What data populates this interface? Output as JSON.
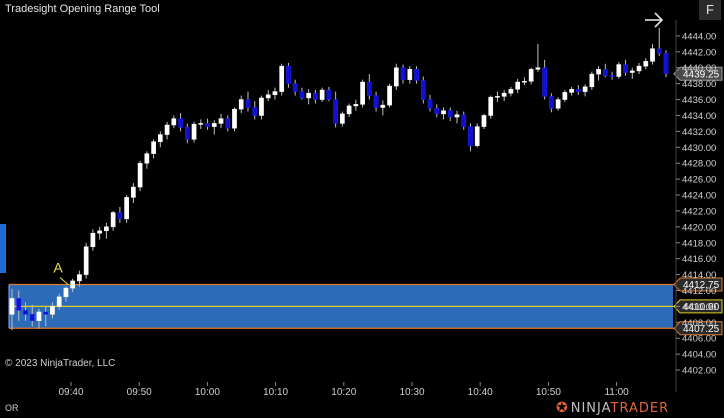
{
  "window": {
    "title": "Tradesight Opening Range Tool",
    "f_button": "F"
  },
  "copyright": "© 2023 NinjaTrader, LLC",
  "panel_label": "OR",
  "brand": {
    "prefix": "NINJA",
    "suffix": "TRADER"
  },
  "colors": {
    "background": "#000000",
    "up_candle": "#ffffff",
    "down_candle": "#1010d0",
    "range_fill": "#2f74c8",
    "range_border": "#e07a2a",
    "range_mid": "#e0d020",
    "price_badge": "#4a4a4a",
    "grid": "#3a3a3a"
  },
  "chart_data": {
    "type": "candlestick",
    "marker_label": "A",
    "y_ticks": [
      "4444.00",
      "4442.00",
      "4440.00",
      "4438.00",
      "4436.00",
      "4434.00",
      "4432.00",
      "4430.00",
      "4428.00",
      "4426.00",
      "4424.00",
      "4422.00",
      "4420.00",
      "4418.00",
      "4416.00",
      "4414.00",
      "4412.00",
      "4410.00",
      "4408.00",
      "4406.00",
      "4404.00",
      "4402.00"
    ],
    "x_ticks": [
      "09:40",
      "09:50",
      "10:00",
      "10:10",
      "10:20",
      "10:30",
      "10:40",
      "10:50",
      "11:00"
    ],
    "ylim": [
      4401,
      4446
    ],
    "opening_range": {
      "high": "4412.75",
      "mid": "4410.00",
      "low": "4407.25"
    },
    "last_price": "4439.25",
    "candles": [
      [
        4409,
        4412.2,
        4407,
        4411
      ],
      [
        4411,
        4412,
        4408.2,
        4409.5
      ],
      [
        4409.5,
        4410.5,
        4408.2,
        4409
      ],
      [
        4409,
        4410.2,
        4407.5,
        4408.2
      ],
      [
        4408.2,
        4409.7,
        4407.2,
        4409.3
      ],
      [
        4409.3,
        4410,
        4407.5,
        4409
      ],
      [
        4409,
        4410.5,
        4408.5,
        4410
      ],
      [
        4410,
        4411.6,
        4409.6,
        4411.2
      ],
      [
        4411.2,
        4412.5,
        4410.6,
        4412.3
      ],
      [
        4412.3,
        4413.5,
        4411.8,
        4413.2
      ],
      [
        4413.2,
        4414.5,
        4412.5,
        4414
      ],
      [
        4414,
        4418,
        4413.5,
        4417.5
      ],
      [
        4417.5,
        4419.7,
        4417,
        4419.2
      ],
      [
        4419.2,
        4420,
        4418.4,
        4419.5
      ],
      [
        4419.5,
        4420.5,
        4418.5,
        4420
      ],
      [
        4420,
        4422,
        4419.5,
        4421.8
      ],
      [
        4421.8,
        4422.5,
        4420.5,
        4421
      ],
      [
        4421,
        4424,
        4420.5,
        4423.7
      ],
      [
        4423.7,
        4425.5,
        4423,
        4425
      ],
      [
        4425,
        4428.3,
        4424.5,
        4428
      ],
      [
        4428,
        4429.5,
        4427.3,
        4429.2
      ],
      [
        4429.2,
        4431,
        4428.6,
        4430.7
      ],
      [
        4430.7,
        4432,
        4430,
        4431.6
      ],
      [
        4431.6,
        4433.2,
        4431,
        4432.8
      ],
      [
        4432.8,
        4434,
        4432.4,
        4433.6
      ],
      [
        4433.6,
        4434.3,
        4432,
        4432.5
      ],
      [
        4432.5,
        4433,
        4430.5,
        4431
      ],
      [
        4431,
        4433.2,
        4430.6,
        4432.9
      ],
      [
        4432.9,
        4433.5,
        4432.3,
        4433
      ],
      [
        4433,
        4433.6,
        4432.2,
        4432.6
      ],
      [
        4432.6,
        4433.4,
        4431.6,
        4433
      ],
      [
        4433,
        4434.2,
        4432.4,
        4433.6
      ],
      [
        4433.6,
        4434,
        4432,
        4432.4
      ],
      [
        4432.4,
        4435,
        4432,
        4434.8
      ],
      [
        4434.8,
        4436.5,
        4434.3,
        4436
      ],
      [
        4436,
        4437,
        4434.5,
        4435
      ],
      [
        4435,
        4435.8,
        4433.5,
        4434
      ],
      [
        4434,
        4436.5,
        4433.5,
        4436.2
      ],
      [
        4436.2,
        4437.2,
        4435.8,
        4436.6
      ],
      [
        4436.6,
        4437.5,
        4436,
        4437
      ],
      [
        4437,
        4440.5,
        4436.5,
        4440.2
      ],
      [
        4440.2,
        4440.6,
        4437.5,
        4438
      ],
      [
        4438,
        4438.5,
        4436.5,
        4437
      ],
      [
        4437,
        4437.5,
        4436,
        4436.2
      ],
      [
        4436.2,
        4437.3,
        4435.4,
        4436.8
      ],
      [
        4436.8,
        4437.2,
        4435.5,
        4436
      ],
      [
        4436,
        4437.5,
        4435.7,
        4437.2
      ],
      [
        4437.2,
        4437.6,
        4435.8,
        4436
      ],
      [
        4436,
        4437,
        4432.5,
        4433
      ],
      [
        4433,
        4434.5,
        4432.6,
        4434.2
      ],
      [
        4434.2,
        4435.5,
        4433.8,
        4435.2
      ],
      [
        4435.2,
        4436,
        4434.6,
        4435.4
      ],
      [
        4435.4,
        4438.5,
        4435,
        4438.2
      ],
      [
        4438.2,
        4439.2,
        4436,
        4436.5
      ],
      [
        4436.5,
        4437,
        4434.5,
        4435
      ],
      [
        4435,
        4435.9,
        4434,
        4435.3
      ],
      [
        4435.3,
        4438,
        4435,
        4437.7
      ],
      [
        4437.7,
        4440.5,
        4437.2,
        4440
      ],
      [
        4440,
        4440.4,
        4438,
        4438.5
      ],
      [
        4438.5,
        4440.2,
        4438,
        4439.8
      ],
      [
        4439.8,
        4440.2,
        4438,
        4438.4
      ],
      [
        4438.4,
        4438.9,
        4435.5,
        4436
      ],
      [
        4436,
        4436.6,
        4434.5,
        4434.9
      ],
      [
        4434.9,
        4435.4,
        4433.8,
        4434.2
      ],
      [
        4434.2,
        4435,
        4433.5,
        4434.6
      ],
      [
        4434.6,
        4435,
        4433.3,
        4433.8
      ],
      [
        4433.8,
        4434.6,
        4433,
        4434.1
      ],
      [
        4434.1,
        4434.5,
        4432.2,
        4432.6
      ],
      [
        4432.6,
        4433,
        4429.5,
        4430.2
      ],
      [
        4430.2,
        4433,
        4430,
        4432.6
      ],
      [
        4432.6,
        4434.2,
        4432.3,
        4434
      ],
      [
        4434,
        4436.5,
        4433.6,
        4436.3
      ],
      [
        4436.3,
        4437,
        4435.7,
        4436.4
      ],
      [
        4436.4,
        4437.2,
        4435.8,
        4436.8
      ],
      [
        4436.8,
        4437.6,
        4436.4,
        4437.3
      ],
      [
        4437.3,
        4438.6,
        4436.8,
        4438.2
      ],
      [
        4438.2,
        4438.8,
        4437.8,
        4438.3
      ],
      [
        4438.3,
        4440,
        4437.9,
        4439.8
      ],
      [
        4439.8,
        4443,
        4439.5,
        4440
      ],
      [
        4440,
        4441,
        4436,
        4436.4
      ],
      [
        4436.4,
        4436.8,
        4434.4,
        4434.9
      ],
      [
        4434.9,
        4436.3,
        4434.6,
        4436
      ],
      [
        4436,
        4437.2,
        4435.7,
        4436.9
      ],
      [
        4436.9,
        4437.6,
        4436.5,
        4437.3
      ],
      [
        4437.3,
        4437.8,
        4436.6,
        4437
      ],
      [
        4437,
        4437.9,
        4436.4,
        4437.6
      ],
      [
        4437.6,
        4439.5,
        4437.2,
        4439.2
      ],
      [
        4439.2,
        4440.2,
        4438.4,
        4439.8
      ],
      [
        4439.8,
        4440.5,
        4438.8,
        4439
      ],
      [
        4439,
        4439.5,
        4438.5,
        4438.9
      ],
      [
        4438.9,
        4440.7,
        4438.6,
        4440.4
      ],
      [
        4440.4,
        4441,
        4439,
        4439.4
      ],
      [
        4439.4,
        4440,
        4438.6,
        4439.6
      ],
      [
        4439.6,
        4440.6,
        4439.2,
        4440.2
      ],
      [
        4440.2,
        4441.2,
        4439.8,
        4440.8
      ],
      [
        4440.8,
        4443,
        4440.4,
        4442.4
      ],
      [
        4442.4,
        4445,
        4441.5,
        4441.8
      ],
      [
        4441.8,
        4442.2,
        4438.8,
        4439.25
      ]
    ]
  }
}
